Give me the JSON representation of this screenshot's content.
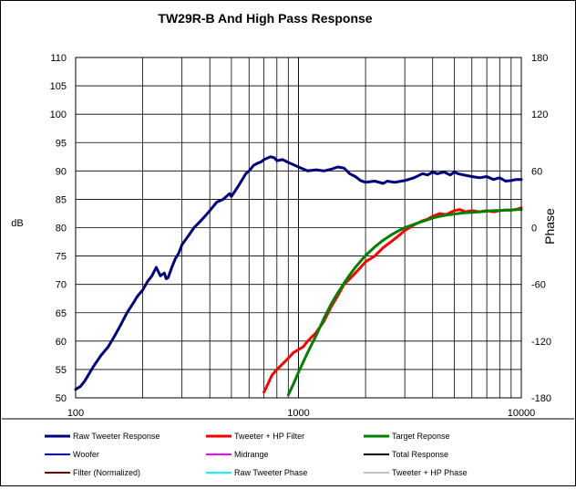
{
  "chart_data": {
    "type": "line",
    "title": "TW29R-B  And High Pass Response",
    "xlabel": "",
    "ylabel": "dB",
    "y2label": "Phase",
    "xscale": "log",
    "xlim": [
      100,
      10000
    ],
    "ylim": [
      50,
      110
    ],
    "y2lim": [
      -180,
      180
    ],
    "x_ticks": [
      100,
      1000,
      10000
    ],
    "x_tick_labels": [
      "100",
      "1000",
      "10000"
    ],
    "y_ticks": [
      50,
      55,
      60,
      65,
      70,
      75,
      80,
      85,
      90,
      95,
      100,
      105,
      110
    ],
    "y_tick_labels": [
      "50",
      "55",
      "60",
      "65",
      "70",
      "75",
      "80",
      "85",
      "90",
      "95",
      "100",
      "105",
      "110"
    ],
    "y2_ticks": [
      -180,
      -120,
      -60,
      0,
      60,
      120,
      180
    ],
    "y2_tick_labels": [
      "-180",
      "-120",
      "-60",
      "0",
      "60",
      "120",
      "180"
    ],
    "grid": true,
    "legend_position": "bottom",
    "series": [
      {
        "name": "Raw Tweeter Response",
        "color": "#000080",
        "x": [
          100,
          105,
          110,
          120,
          130,
          140,
          150,
          160,
          170,
          180,
          190,
          200,
          210,
          220,
          230,
          240,
          250,
          255,
          260,
          270,
          280,
          290,
          300,
          320,
          340,
          360,
          380,
          400,
          430,
          460,
          490,
          500,
          510,
          520,
          540,
          560,
          580,
          600,
          630,
          650,
          680,
          700,
          750,
          780,
          800,
          850,
          900,
          1000,
          1100,
          1200,
          1300,
          1400,
          1500,
          1600,
          1700,
          1800,
          1900,
          2000,
          2200,
          2400,
          2500,
          2700,
          3000,
          3300,
          3600,
          3800,
          4000,
          4200,
          4500,
          4800,
          5000,
          5200,
          5500,
          6000,
          6500,
          7000,
          7500,
          8000,
          8500,
          9000,
          9500,
          10000
        ],
        "values": [
          51.5,
          52,
          53,
          55.5,
          57.5,
          59,
          61,
          63,
          65,
          66.5,
          68,
          69,
          70.5,
          71.5,
          73,
          71.5,
          72,
          71,
          71.2,
          73,
          74.5,
          75.5,
          77,
          78.5,
          80,
          81,
          82,
          83,
          84.5,
          85,
          86,
          85.5,
          86,
          86.5,
          87.5,
          88.5,
          89.5,
          90,
          91,
          91.3,
          91.6,
          92,
          92.5,
          92.3,
          91.8,
          92,
          91.5,
          90.7,
          90,
          90.2,
          90,
          90.3,
          90.7,
          90.5,
          89.5,
          89,
          88.3,
          88,
          88.2,
          87.8,
          88.2,
          88,
          88.3,
          88.8,
          89.5,
          89.3,
          89.8,
          89.5,
          89.8,
          89.3,
          89.8,
          89.5,
          89.3,
          89,
          88.8,
          89,
          88.5,
          88.8,
          88.2,
          88.3,
          88.5,
          88.5
        ]
      },
      {
        "name": "Tweeter + HP Filter",
        "color": "#ff0000",
        "x": [
          700,
          730,
          760,
          800,
          850,
          900,
          950,
          1000,
          1050,
          1100,
          1200,
          1300,
          1400,
          1500,
          1600,
          1700,
          1800,
          1900,
          2000,
          2200,
          2400,
          2600,
          2800,
          3000,
          3300,
          3600,
          3800,
          4000,
          4300,
          4600,
          5000,
          5300,
          5600,
          6000,
          6500,
          7000,
          7500,
          8000,
          8500,
          9000,
          9500,
          10000
        ],
        "values": [
          51,
          52.5,
          54,
          55,
          56,
          57,
          58,
          58.5,
          59,
          60,
          61.5,
          63.5,
          66,
          68,
          70,
          71,
          72,
          73,
          74,
          75,
          76.5,
          77.5,
          78.5,
          79.5,
          80.5,
          81.2,
          81.5,
          82,
          82.5,
          82.3,
          83,
          83.2,
          82.8,
          83,
          82.8,
          83,
          82.8,
          83,
          83.1,
          83.1,
          83.2,
          83.5
        ]
      },
      {
        "name": "Target Reponse",
        "color": "#008000",
        "x": [
          900,
          950,
          1000,
          1050,
          1100,
          1200,
          1300,
          1400,
          1500,
          1600,
          1700,
          1800,
          1900,
          2000,
          2200,
          2400,
          2600,
          2800,
          3000,
          3300,
          3600,
          3800,
          4000,
          4300,
          4600,
          5000,
          5500,
          6000,
          6500,
          7000,
          7500,
          8000,
          8500,
          9000,
          9500,
          10000
        ],
        "values": [
          50.5,
          52.5,
          54.5,
          56.3,
          58,
          61,
          64,
          66.5,
          68.5,
          70.2,
          71.7,
          73,
          74.1,
          75.1,
          76.6,
          77.8,
          78.7,
          79.4,
          80,
          80.6,
          81.1,
          81.4,
          81.7,
          82,
          82.2,
          82.4,
          82.6,
          82.7,
          82.8,
          82.9,
          83,
          83,
          83.1,
          83.1,
          83.2,
          83.2
        ]
      }
    ]
  },
  "legend": [
    {
      "name": "Raw Tweeter Response",
      "color": "#000080"
    },
    {
      "name": "Tweeter + HP Filter",
      "color": "#ff0000"
    },
    {
      "name": "Target Reponse",
      "color": "#008000"
    },
    {
      "name": "Woofer",
      "color": "#0000ff"
    },
    {
      "name": "Midrange",
      "color": "#ff00ff"
    },
    {
      "name": "Total Response",
      "color": "#000000"
    },
    {
      "name": "Filter (Normalized)",
      "color": "#800000"
    },
    {
      "name": "Raw Tweeter Phase",
      "color": "#00ffff"
    },
    {
      "name": "Tweeter + HP Phase",
      "color": "#808080"
    }
  ]
}
